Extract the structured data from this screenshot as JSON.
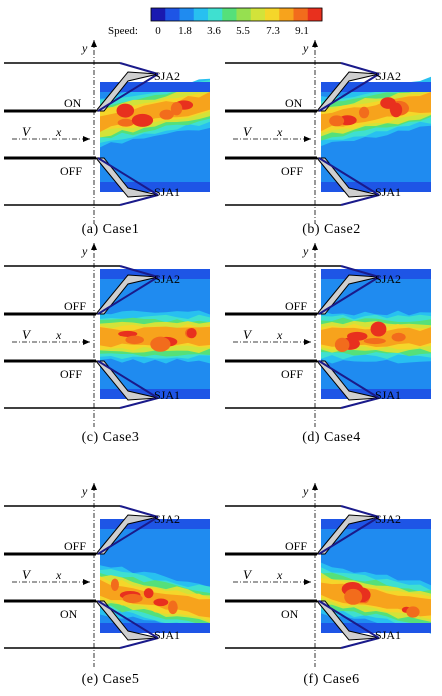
{
  "colorbar": {
    "title": "Speed:",
    "tick_labels": [
      "0",
      "1.8",
      "3.6",
      "5.5",
      "7.3",
      "9.1"
    ],
    "colors": [
      "#1a1ab0",
      "#1e55e6",
      "#1f8bf0",
      "#28c0f0",
      "#3fe0d0",
      "#55e07a",
      "#96e050",
      "#d2e33a",
      "#f5d62a",
      "#f7a31c",
      "#f26c1c",
      "#e8301e"
    ]
  },
  "labels": {
    "y_axis": "y",
    "flow": "V",
    "x_axis": "x",
    "sja_top": "SJA2",
    "sja_bottom": "SJA1"
  },
  "panels": [
    {
      "caption": "(a) Case1",
      "top_state": "ON",
      "bottom_state": "OFF"
    },
    {
      "caption": "(b) Case2",
      "top_state": "ON",
      "bottom_state": "OFF"
    },
    {
      "caption": "(c) Case3",
      "top_state": "OFF",
      "bottom_state": "OFF"
    },
    {
      "caption": "(d) Case4",
      "top_state": "OFF",
      "bottom_state": "OFF"
    },
    {
      "caption": "(e) Case5",
      "top_state": "OFF",
      "bottom_state": "ON"
    },
    {
      "caption": "(f) Case6",
      "top_state": "OFF",
      "bottom_state": "ON"
    }
  ]
}
